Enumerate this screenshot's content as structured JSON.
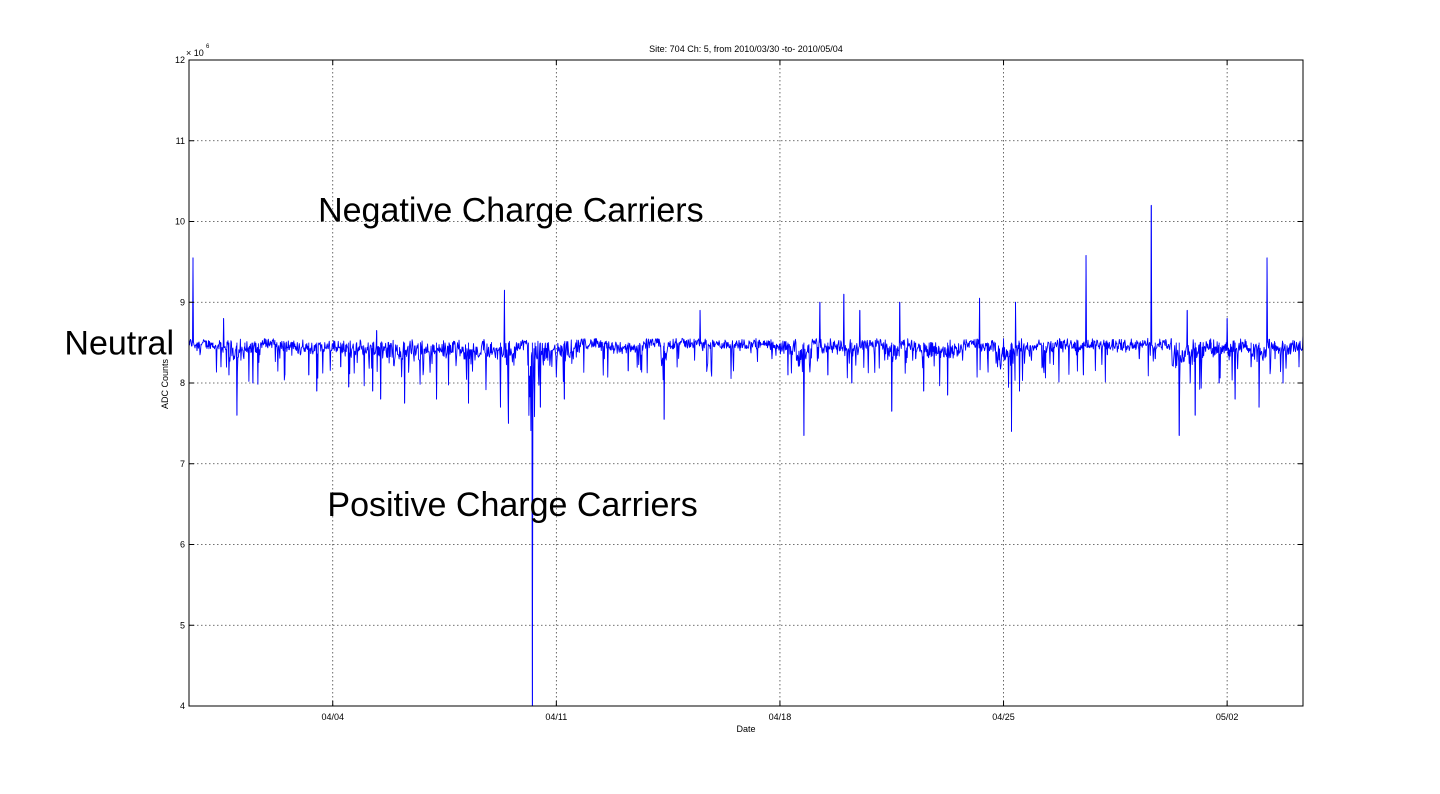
{
  "chart_data": {
    "type": "line",
    "title": "Site: 704 Ch: 5, from 2010/03/30 -to- 2010/05/04",
    "xlabel": "Date",
    "ylabel": "ADC Counts",
    "y_multiplier": "× 10",
    "y_exponent": "6",
    "xlim": [
      "2010-03-30T12:00",
      "2010-05-04T09:00"
    ],
    "ylim": [
      4,
      12
    ],
    "x_ticks": [
      {
        "date": "2010-04-04",
        "label": "04/04"
      },
      {
        "date": "2010-04-11",
        "label": "04/11"
      },
      {
        "date": "2010-04-18",
        "label": "04/18"
      },
      {
        "date": "2010-04-25",
        "label": "04/25"
      },
      {
        "date": "2010-05-02",
        "label": "05/02"
      }
    ],
    "y_ticks": [
      {
        "value": 4,
        "label": "4"
      },
      {
        "value": 5,
        "label": "5"
      },
      {
        "value": 6,
        "label": "6"
      },
      {
        "value": 7,
        "label": "7"
      },
      {
        "value": 8,
        "label": "8"
      },
      {
        "value": 9,
        "label": "9"
      },
      {
        "value": 10,
        "label": "10"
      },
      {
        "value": 11,
        "label": "11"
      },
      {
        "value": 12,
        "label": "12"
      }
    ],
    "grid": true,
    "series_color": "#0000ff",
    "baseline_value": 8.5,
    "series": [
      {
        "points": [
          [
            "2010-03-30T12:00",
            8.5
          ],
          [
            "2010-03-30T15:00",
            9.55
          ],
          [
            "2010-03-30T18:00",
            8.4
          ],
          [
            "2010-03-31T06:00",
            8.45
          ],
          [
            "2010-03-31T12:00",
            8.2
          ],
          [
            "2010-03-31T14:00",
            8.8
          ],
          [
            "2010-03-31T18:00",
            8.1
          ],
          [
            "2010-04-01T00:00",
            7.6
          ],
          [
            "2010-04-01T06:00",
            8.45
          ],
          [
            "2010-04-01T12:00",
            8.0
          ],
          [
            "2010-04-01T18:00",
            8.5
          ],
          [
            "2010-04-02T06:00",
            8.5
          ],
          [
            "2010-04-02T12:00",
            8.1
          ],
          [
            "2010-04-02T18:00",
            8.5
          ],
          [
            "2010-04-03T06:00",
            8.1
          ],
          [
            "2010-04-03T12:00",
            7.9
          ],
          [
            "2010-04-03T18:00",
            8.5
          ],
          [
            "2010-04-04T06:00",
            8.2
          ],
          [
            "2010-04-04T12:00",
            7.95
          ],
          [
            "2010-04-04T18:00",
            8.5
          ],
          [
            "2010-04-05T06:00",
            7.9
          ],
          [
            "2010-04-05T09:00",
            8.65
          ],
          [
            "2010-04-05T12:00",
            7.8
          ],
          [
            "2010-04-05T18:00",
            8.5
          ],
          [
            "2010-04-06T06:00",
            7.75
          ],
          [
            "2010-04-06T18:00",
            8.5
          ],
          [
            "2010-04-07T06:00",
            7.8
          ],
          [
            "2010-04-07T18:00",
            8.5
          ],
          [
            "2010-04-08T06:00",
            7.75
          ],
          [
            "2010-04-08T18:00",
            8.5
          ],
          [
            "2010-04-09T06:00",
            7.7
          ],
          [
            "2010-04-09T09:00",
            9.15
          ],
          [
            "2010-04-09T12:00",
            7.5
          ],
          [
            "2010-04-09T18:00",
            8.5
          ],
          [
            "2010-04-10T03:00",
            8.4
          ],
          [
            "2010-04-10T06:00",
            3.9
          ],
          [
            "2010-04-10T08:00",
            8.3
          ],
          [
            "2010-04-10T12:00",
            7.7
          ],
          [
            "2010-04-10T18:00",
            8.5
          ],
          [
            "2010-04-11T06:00",
            7.8
          ],
          [
            "2010-04-11T18:00",
            8.45
          ],
          [
            "2010-04-12T06:00",
            8.55
          ],
          [
            "2010-04-12T12:00",
            8.3
          ],
          [
            "2010-04-12T18:00",
            8.5
          ],
          [
            "2010-04-13T06:00",
            8.15
          ],
          [
            "2010-04-13T18:00",
            8.5
          ],
          [
            "2010-04-14T06:00",
            8.45
          ],
          [
            "2010-04-14T09:00",
            7.55
          ],
          [
            "2010-04-14T12:00",
            8.45
          ],
          [
            "2010-04-14T18:00",
            8.55
          ],
          [
            "2010-04-15T06:00",
            8.5
          ],
          [
            "2010-04-15T12:00",
            8.9
          ],
          [
            "2010-04-15T14:00",
            8.4
          ],
          [
            "2010-04-16T06:00",
            8.5
          ],
          [
            "2010-04-16T18:00",
            8.4
          ],
          [
            "2010-04-17T06:00",
            8.55
          ],
          [
            "2010-04-17T18:00",
            8.3
          ],
          [
            "2010-04-18T06:00",
            8.1
          ],
          [
            "2010-04-18T12:00",
            8.5
          ],
          [
            "2010-04-18T18:00",
            7.35
          ],
          [
            "2010-04-19T00:00",
            8.5
          ],
          [
            "2010-04-19T06:00",
            9.0
          ],
          [
            "2010-04-19T12:00",
            8.1
          ],
          [
            "2010-04-20T00:00",
            9.1
          ],
          [
            "2010-04-20T06:00",
            8.0
          ],
          [
            "2010-04-20T12:00",
            8.9
          ],
          [
            "2010-04-20T18:00",
            8.4
          ],
          [
            "2010-04-21T06:00",
            8.5
          ],
          [
            "2010-04-21T12:00",
            7.65
          ],
          [
            "2010-04-21T18:00",
            9.0
          ],
          [
            "2010-04-22T06:00",
            8.3
          ],
          [
            "2010-04-22T12:00",
            7.9
          ],
          [
            "2010-04-22T18:00",
            8.5
          ],
          [
            "2010-04-23T06:00",
            7.85
          ],
          [
            "2010-04-23T18:00",
            8.5
          ],
          [
            "2010-04-24T06:00",
            9.05
          ],
          [
            "2010-04-24T12:00",
            8.3
          ],
          [
            "2010-04-24T18:00",
            8.4
          ],
          [
            "2010-04-25T06:00",
            7.4
          ],
          [
            "2010-04-25T09:00",
            9.0
          ],
          [
            "2010-04-25T12:00",
            7.9
          ],
          [
            "2010-04-25T18:00",
            8.5
          ],
          [
            "2010-04-26T06:00",
            8.2
          ],
          [
            "2010-04-26T18:00",
            8.55
          ],
          [
            "2010-04-27T06:00",
            8.4
          ],
          [
            "2010-04-27T12:00",
            8.1
          ],
          [
            "2010-04-27T14:00",
            9.58
          ],
          [
            "2010-04-27T18:00",
            8.5
          ],
          [
            "2010-04-28T06:00",
            8.35
          ],
          [
            "2010-04-28T18:00",
            8.5
          ],
          [
            "2010-04-29T06:00",
            8.3
          ],
          [
            "2010-04-29T12:00",
            8.5
          ],
          [
            "2010-04-29T15:00",
            10.2
          ],
          [
            "2010-04-29T18:00",
            8.3
          ],
          [
            "2010-04-30T06:00",
            8.55
          ],
          [
            "2010-04-30T12:00",
            7.35
          ],
          [
            "2010-04-30T18:00",
            8.9
          ],
          [
            "2010-05-01T00:00",
            7.6
          ],
          [
            "2010-05-01T06:00",
            8.5
          ],
          [
            "2010-05-01T12:00",
            8.4
          ],
          [
            "2010-05-01T18:00",
            8.0
          ],
          [
            "2010-05-02T00:00",
            8.8
          ],
          [
            "2010-05-02T06:00",
            7.8
          ],
          [
            "2010-05-02T12:00",
            8.5
          ],
          [
            "2010-05-02T18:00",
            8.2
          ],
          [
            "2010-05-03T00:00",
            7.7
          ],
          [
            "2010-05-03T06:00",
            9.55
          ],
          [
            "2010-05-03T12:00",
            8.3
          ],
          [
            "2010-05-03T18:00",
            8.0
          ],
          [
            "2010-05-04T00:00",
            8.4
          ],
          [
            "2010-05-04T06:00",
            8.2
          ],
          [
            "2010-05-04T09:00",
            8.6
          ]
        ]
      }
    ],
    "annotations": [
      {
        "text": "Negative Charge Carriers",
        "x": "2010-04-03T13:00",
        "y": 10.15
      },
      {
        "text": "Neutral",
        "x": "2010-03-30T12:00",
        "y": 8.5
      },
      {
        "text": "Positive Charge Carriers",
        "x": "2010-04-03T20:00",
        "y": 6.5
      }
    ]
  }
}
